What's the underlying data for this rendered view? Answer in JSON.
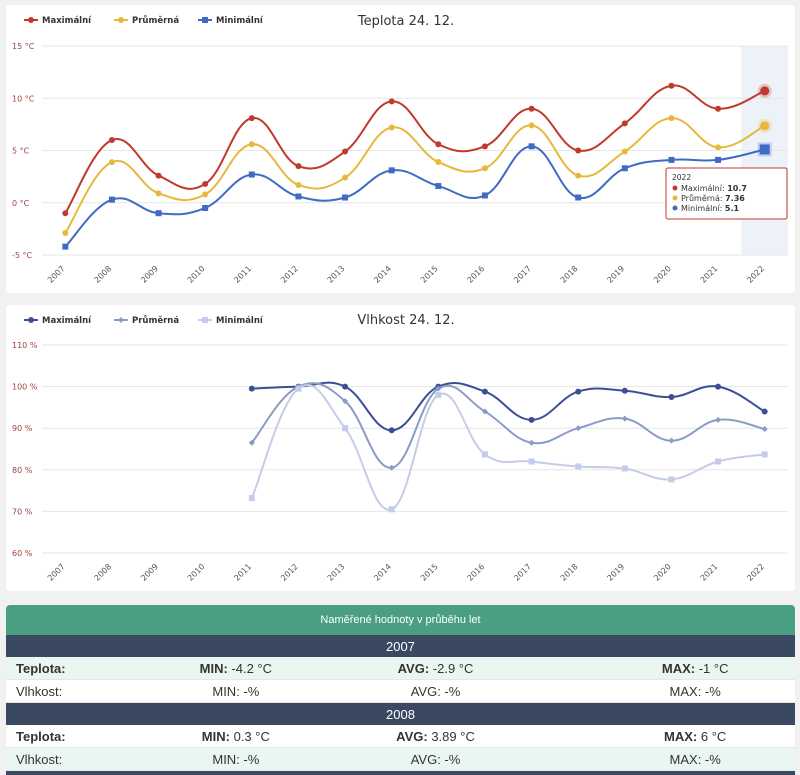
{
  "colors": {
    "max": "#c0392b",
    "avg": "#e6b83c",
    "min": "#3f6bc4",
    "hum_max": "#3a4f96",
    "hum_avg": "#8a9cc6",
    "hum_min": "#c5cce9",
    "table_head": "#4a9e82",
    "year_row": "#3a4961"
  },
  "chart_data": [
    {
      "type": "line",
      "title": "Teplota 24. 12.",
      "legend_position": "top-left",
      "categories": [
        "2007",
        "2008",
        "2009",
        "2010",
        "2011",
        "2012",
        "2013",
        "2014",
        "2015",
        "2016",
        "2017",
        "2018",
        "2019",
        "2020",
        "2021",
        "2022"
      ],
      "y_ticks": [
        "15 °C",
        "10 °C",
        "5 °C",
        "0 °C",
        "-5 °C"
      ],
      "ylim": [
        -5,
        15
      ],
      "grid": true,
      "series": [
        {
          "name": "Maximální",
          "values": [
            -1,
            6,
            2.6,
            1.8,
            8.1,
            3.5,
            4.9,
            9.7,
            5.6,
            5.4,
            9,
            5,
            7.6,
            11.2,
            9,
            10.7
          ]
        },
        {
          "name": "Průměrná",
          "values": [
            -2.9,
            3.89,
            0.9,
            0.8,
            5.6,
            1.7,
            2.4,
            7.2,
            3.9,
            3.3,
            7.4,
            2.6,
            4.9,
            8.1,
            5.3,
            7.36
          ]
        },
        {
          "name": "Minimální",
          "values": [
            -4.2,
            0.3,
            -1,
            -0.5,
            2.7,
            0.6,
            0.5,
            3.1,
            1.6,
            0.7,
            5.4,
            0.5,
            3.3,
            4.1,
            4.1,
            5.1
          ]
        }
      ],
      "tooltip": {
        "year": "2022",
        "rows": [
          {
            "label": "Maximální:",
            "value": "10.7"
          },
          {
            "label": "Průměrná:",
            "value": "7.36"
          },
          {
            "label": "Minimální:",
            "value": "5.1"
          }
        ]
      }
    },
    {
      "type": "line",
      "title": "Vlhkost 24. 12.",
      "legend_position": "top-left",
      "categories": [
        "2007",
        "2008",
        "2009",
        "2010",
        "2011",
        "2012",
        "2013",
        "2014",
        "2015",
        "2016",
        "2017",
        "2018",
        "2019",
        "2020",
        "2021",
        "2022"
      ],
      "y_ticks": [
        "110 %",
        "100 %",
        "90 %",
        "80 %",
        "70 %",
        "60 %"
      ],
      "ylim": [
        60,
        110
      ],
      "grid": true,
      "series": [
        {
          "name": "Maximální",
          "values": [
            null,
            null,
            null,
            null,
            99.5,
            100,
            100,
            89.5,
            100,
            98.8,
            92,
            98.8,
            99,
            97.5,
            100,
            94
          ]
        },
        {
          "name": "Průměrná",
          "values": [
            null,
            null,
            null,
            null,
            86.5,
            100,
            96.5,
            80.5,
            99.5,
            94,
            86.5,
            90,
            92.3,
            87,
            92,
            89.8
          ]
        },
        {
          "name": "Minimální",
          "values": [
            null,
            null,
            null,
            null,
            73.2,
            99.5,
            90,
            70.5,
            98,
            83.7,
            82,
            80.8,
            80.3,
            77.7,
            82,
            83.7
          ]
        }
      ]
    }
  ],
  "table": {
    "title": "Naměřené hodnoty v průběhu let",
    "years": [
      {
        "year": "2007",
        "temp": {
          "label": "Teplota:",
          "min_label": "MIN:",
          "min": "-4.2 °C",
          "avg_label": "AVG:",
          "avg": "-2.9 °C",
          "max_label": "MAX:",
          "max": "-1 °C"
        },
        "hum": {
          "label": "Vlhkost:",
          "min": "MIN: -%",
          "avg": "AVG: -%",
          "max": "MAX: -%"
        }
      },
      {
        "year": "2008",
        "temp": {
          "label": "Teplota:",
          "min_label": "MIN:",
          "min": "0.3 °C",
          "avg_label": "AVG:",
          "avg": "3.89 °C",
          "max_label": "MAX:",
          "max": "6 °C"
        },
        "hum": {
          "label": "Vlhkost:",
          "min": "MIN: -%",
          "avg": "AVG: -%",
          "max": "MAX: -%"
        }
      }
    ]
  }
}
